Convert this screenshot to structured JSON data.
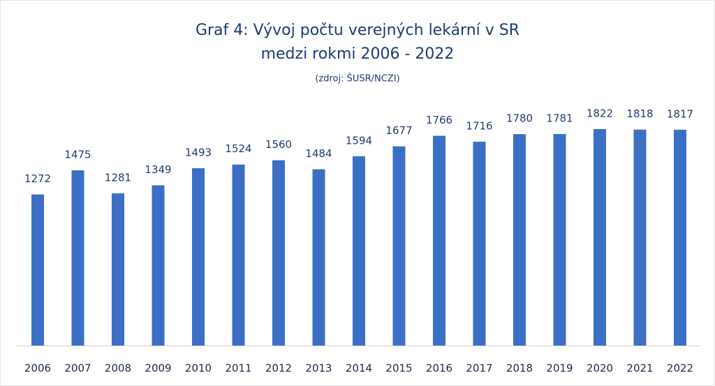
{
  "chart_data": {
    "type": "bar",
    "title": [
      "Graf 4: Vývoj počtu verejných lekární v  SR",
      "medzi rokmi 2006 - 2022"
    ],
    "subtitle": "(zdroj: ŠUSR/NCZI)",
    "categories": [
      "2006",
      "2007",
      "2008",
      "2009",
      "2010",
      "2011",
      "2012",
      "2013",
      "2014",
      "2015",
      "2016",
      "2017",
      "2018",
      "2019",
      "2020",
      "2021",
      "2022"
    ],
    "values": [
      1272,
      1475,
      1281,
      1349,
      1493,
      1524,
      1560,
      1484,
      1594,
      1677,
      1766,
      1716,
      1780,
      1781,
      1822,
      1818,
      1817
    ],
    "color": "#3b6fc6"
  }
}
